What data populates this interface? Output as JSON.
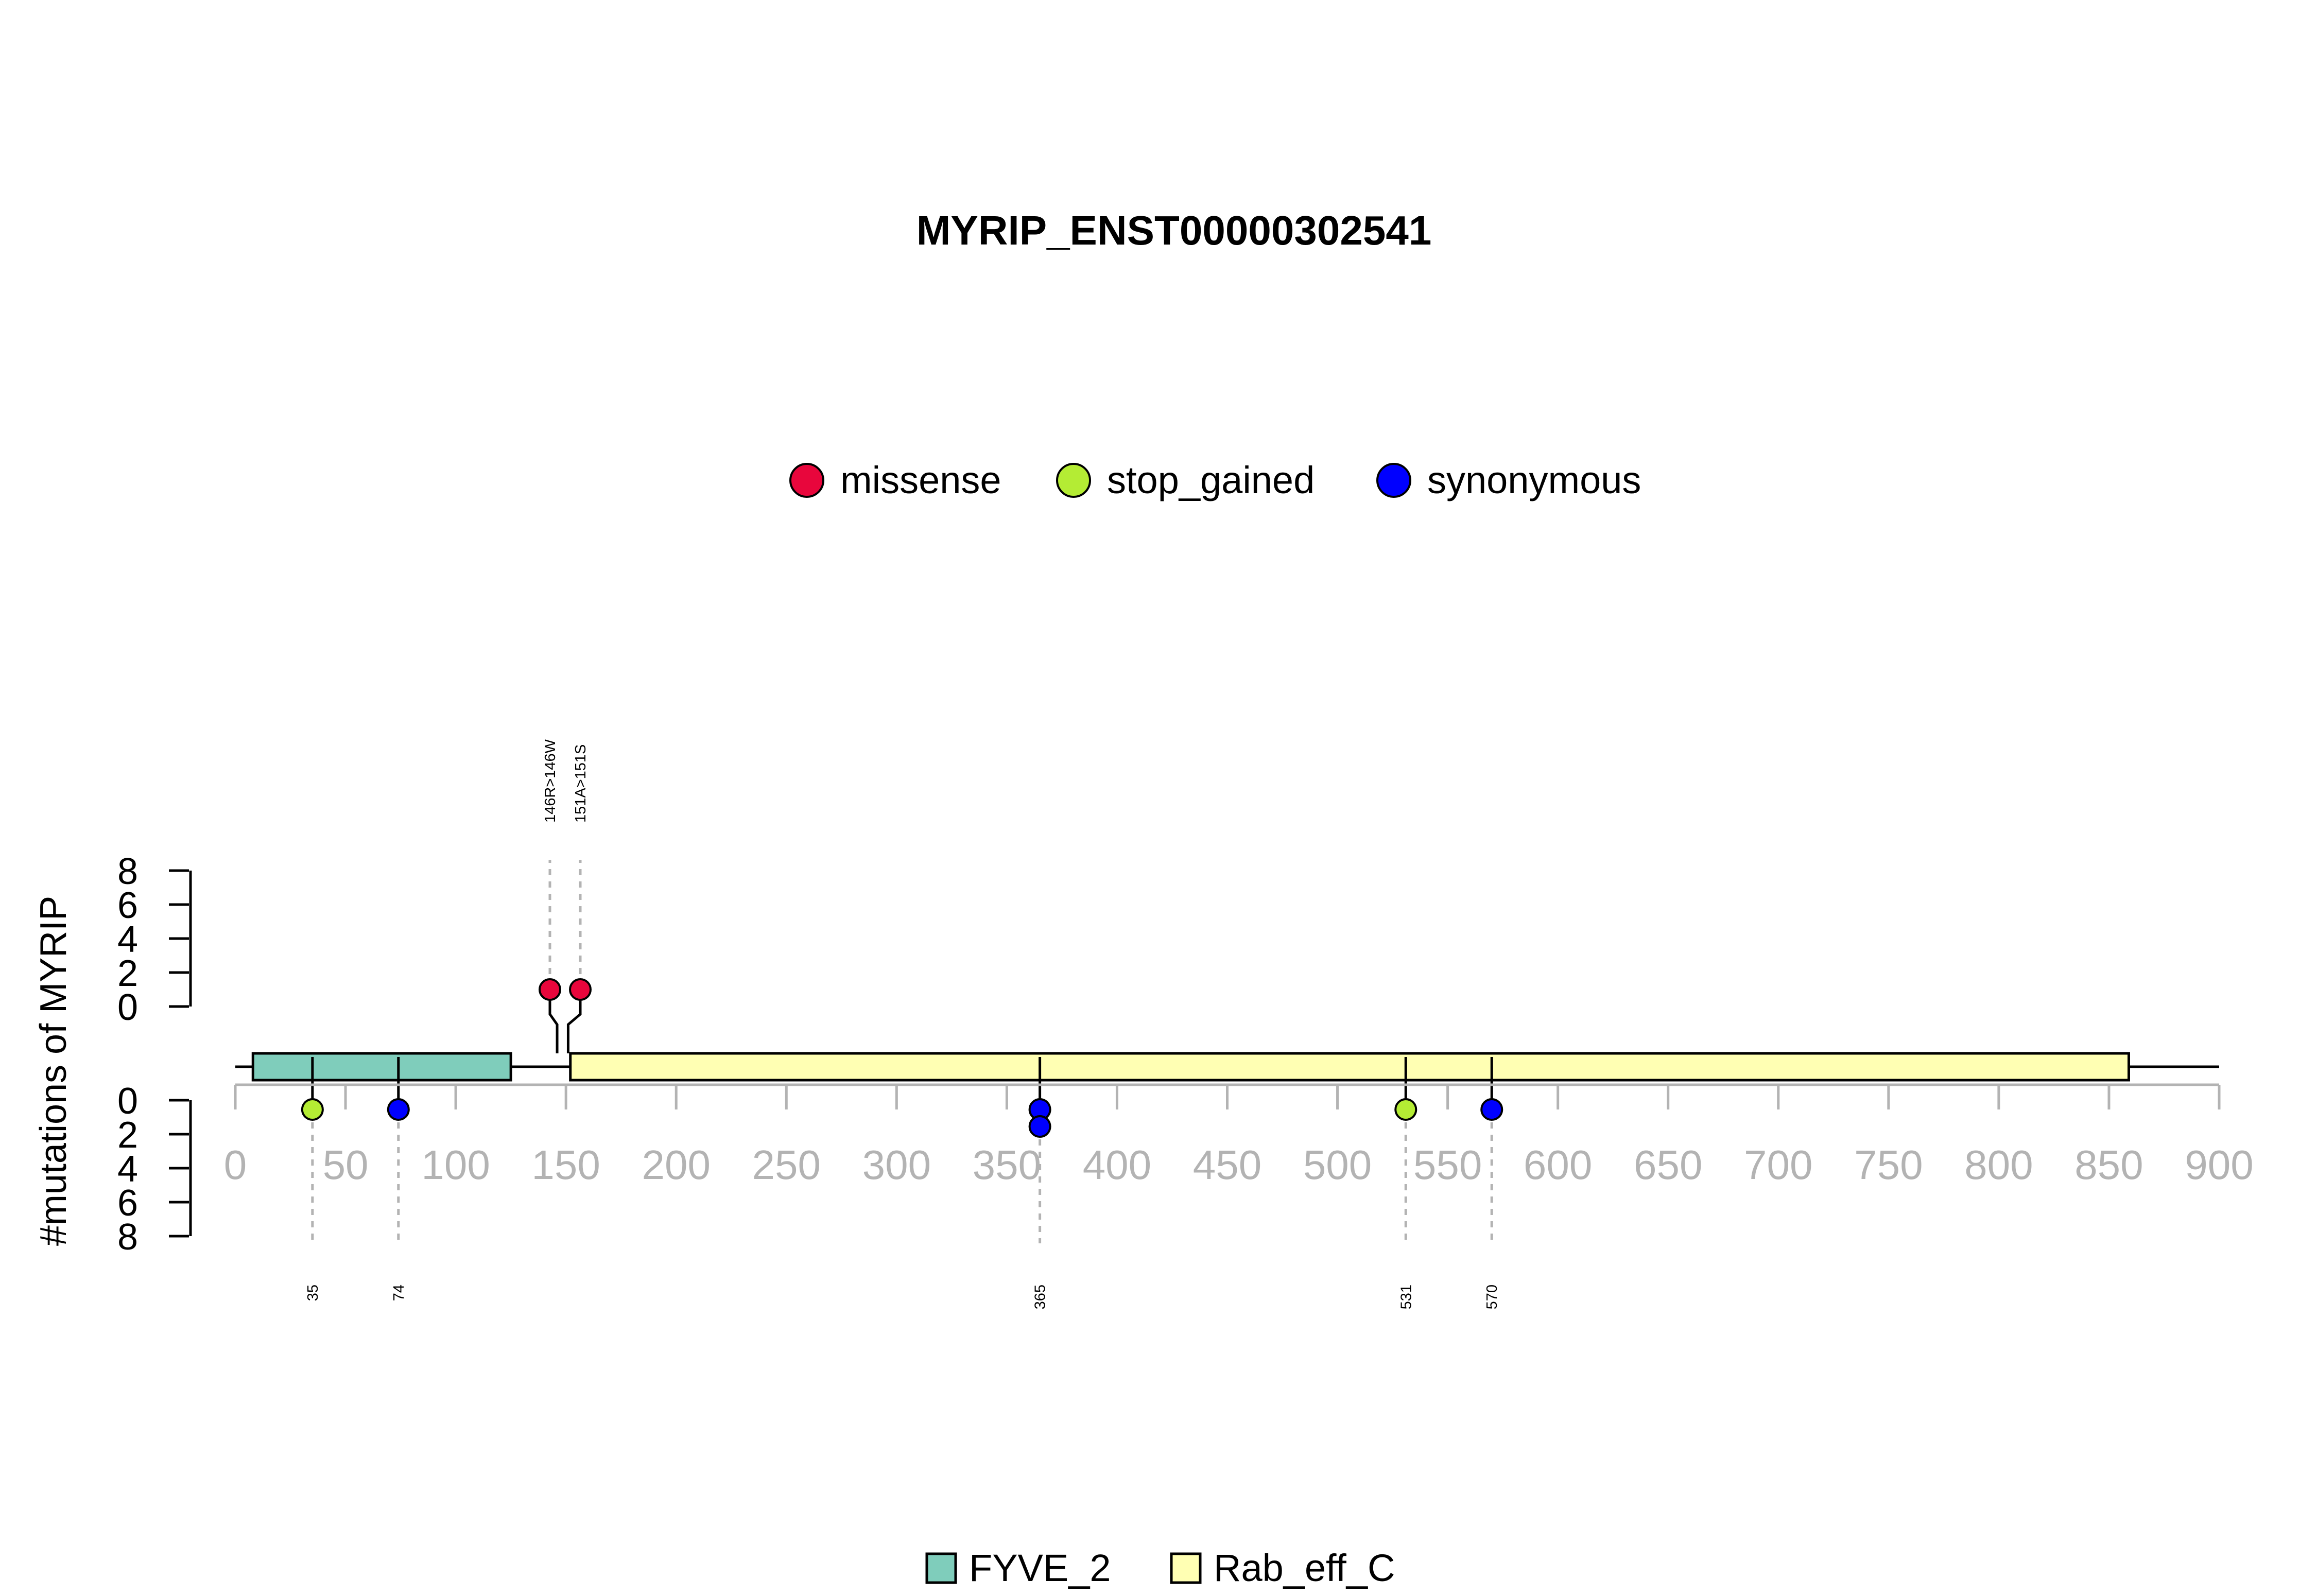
{
  "chart_data": {
    "type": "lollipop",
    "title": "MYRIP_ENST00000302541",
    "ylabel": "#mutations of MYRIP",
    "xlim": [
      0,
      900
    ],
    "x_ticks": [
      0,
      50,
      100,
      150,
      200,
      250,
      300,
      350,
      400,
      450,
      500,
      550,
      600,
      650,
      700,
      750,
      800,
      850,
      900
    ],
    "y_ticks": [
      0,
      2,
      4,
      6,
      8
    ],
    "protein_length": 859,
    "legend": [
      {
        "name": "missense",
        "color": "#e8063c"
      },
      {
        "name": "stop_gained",
        "color": "#b4ec34"
      },
      {
        "name": "synonymous",
        "color": "#0000ff"
      }
    ],
    "domains": [
      {
        "name": "FYVE_2",
        "start": 8,
        "end": 125,
        "color": "#7fcdbb"
      },
      {
        "name": "Rab_eff_C",
        "start": 152,
        "end": 859,
        "color": "#ffffb3"
      }
    ],
    "top_mutations": [
      {
        "position": 146,
        "count": 1,
        "type": "missense",
        "label": "146R>146W",
        "color": "#e8063c"
      },
      {
        "position": 151,
        "count": 1,
        "type": "missense",
        "label": "151A>151S",
        "color": "#e8063c"
      }
    ],
    "bottom_mutations": [
      {
        "position": 35,
        "count": 1,
        "type": "stop_gained",
        "label": "35",
        "color": "#b4ec34"
      },
      {
        "position": 74,
        "count": 1,
        "type": "synonymous",
        "label": "74",
        "color": "#0000ff"
      },
      {
        "position": 365,
        "count": 2,
        "type": "synonymous",
        "label": "365",
        "color": "#0000ff"
      },
      {
        "position": 531,
        "count": 1,
        "type": "stop_gained",
        "label": "531",
        "color": "#b4ec34"
      },
      {
        "position": 570,
        "count": 1,
        "type": "synonymous",
        "label": "570",
        "color": "#0000ff"
      }
    ]
  }
}
